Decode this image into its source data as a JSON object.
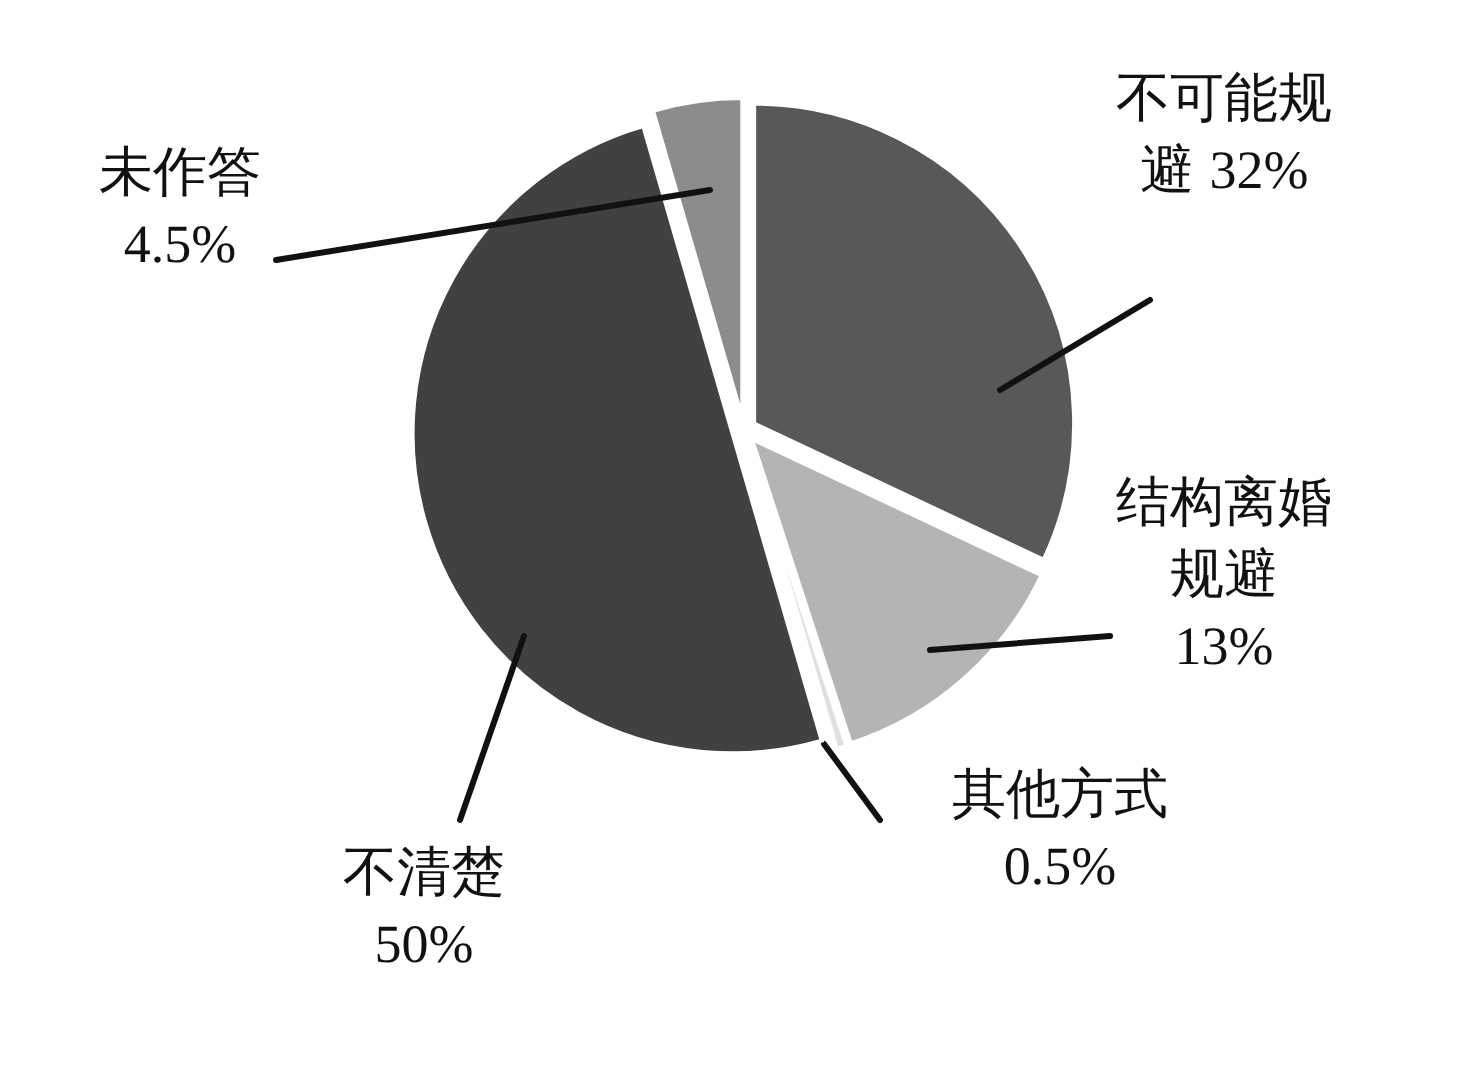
{
  "chart_data": {
    "type": "pie",
    "categories": [
      "不可能规避",
      "结构离婚规避",
      "其他方式",
      "不清楚",
      "未作答"
    ],
    "values": [
      32,
      13,
      0.5,
      50,
      4.5
    ],
    "colors": [
      "#585858",
      "#b4b4b4",
      "#e0e0e0",
      "#414141",
      "#8c8c8c"
    ],
    "value_labels": [
      "32%",
      "13%",
      "0.5%",
      "50%",
      "4.5%"
    ]
  }
}
